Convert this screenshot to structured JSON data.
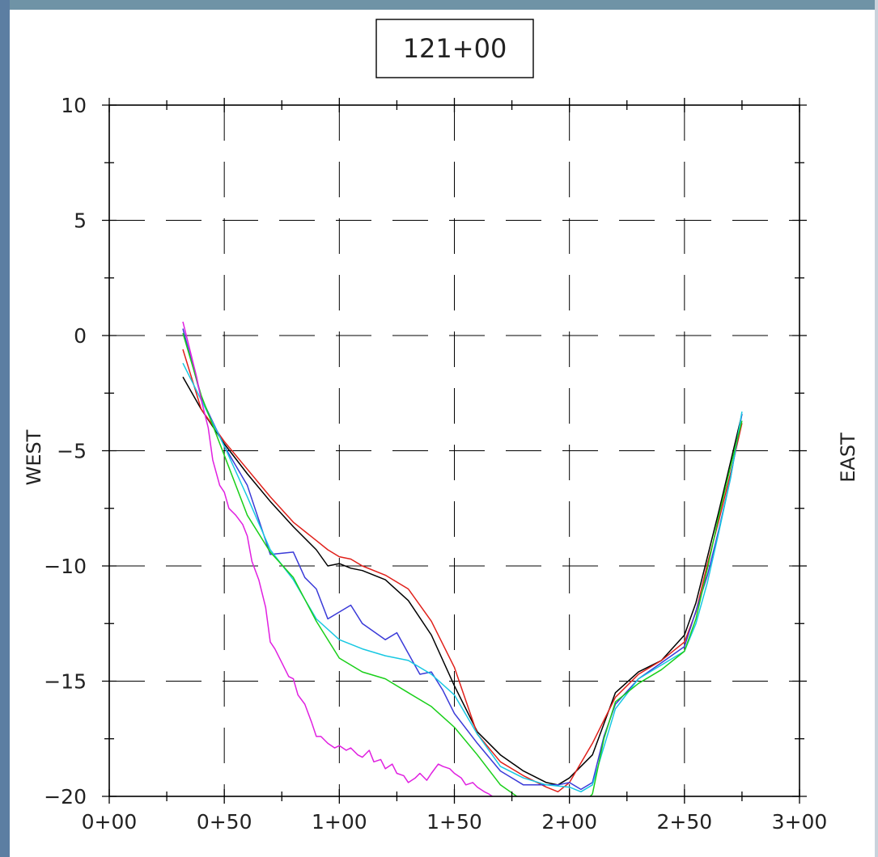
{
  "chart_data": {
    "type": "line",
    "title": "121+00",
    "ylabel": "WEST",
    "y2label": "EAST",
    "xlabel": "",
    "xlim": [
      0,
      300
    ],
    "ylim": [
      -20,
      10
    ],
    "x_ticks": [
      0,
      50,
      100,
      150,
      200,
      250,
      300
    ],
    "x_tick_labels": [
      "0+00",
      "0+50",
      "1+00",
      "1+50",
      "2+00",
      "2+50",
      "3+00"
    ],
    "y_ticks": [
      10,
      5,
      0,
      -5,
      -10,
      -15,
      -20
    ],
    "y_tick_labels": [
      "10",
      "5",
      "0",
      "−5",
      "−10",
      "−15",
      "−20"
    ],
    "grid": true,
    "grid_style": "dashed",
    "series": [
      {
        "color": "#000000",
        "x": [
          32,
          40,
          50,
          60,
          70,
          80,
          90,
          95,
          100,
          105,
          110,
          120,
          130,
          140,
          150,
          160,
          170,
          180,
          190,
          195,
          200,
          210,
          220,
          230,
          240,
          250,
          255,
          260,
          265,
          270,
          275
        ],
        "y": [
          -1.8,
          -3.2,
          -4.7,
          -6.0,
          -7.2,
          -8.3,
          -9.3,
          -10.0,
          -9.9,
          -10.1,
          -10.2,
          -10.6,
          -11.5,
          -13.0,
          -15.2,
          -17.2,
          -18.2,
          -18.9,
          -19.4,
          -19.5,
          -19.2,
          -18.2,
          -15.5,
          -14.6,
          -14.1,
          -13.0,
          -11.6,
          -9.6,
          -7.6,
          -5.5,
          -3.4
        ]
      },
      {
        "color": "#e0201a",
        "x": [
          32,
          40,
          50,
          60,
          70,
          80,
          90,
          95,
          100,
          105,
          110,
          120,
          130,
          140,
          150,
          160,
          170,
          180,
          190,
          195,
          200,
          210,
          220,
          230,
          240,
          250,
          255,
          260,
          265,
          270,
          275
        ],
        "y": [
          -0.6,
          -3.2,
          -4.6,
          -5.8,
          -7.0,
          -8.1,
          -8.9,
          -9.3,
          -9.6,
          -9.7,
          -10.0,
          -10.4,
          -11.0,
          -12.4,
          -14.4,
          -17.3,
          -18.5,
          -19.1,
          -19.6,
          -19.8,
          -19.4,
          -17.7,
          -15.7,
          -14.7,
          -14.1,
          -13.3,
          -12.0,
          -9.9,
          -8.0,
          -6.0,
          -3.8
        ]
      },
      {
        "color": "#3a3ad8",
        "x": [
          32,
          40,
          50,
          60,
          65,
          70,
          80,
          85,
          90,
          95,
          100,
          105,
          110,
          120,
          125,
          130,
          135,
          140,
          145,
          150,
          160,
          170,
          180,
          190,
          195,
          200,
          205,
          210,
          215,
          220,
          230,
          240,
          250,
          260,
          265,
          270,
          275
        ],
        "y": [
          0.3,
          -2.7,
          -4.8,
          -6.5,
          -8.0,
          -9.5,
          -9.4,
          -10.5,
          -11.0,
          -12.3,
          -12.0,
          -11.7,
          -12.5,
          -13.2,
          -12.9,
          -13.8,
          -14.7,
          -14.6,
          -15.4,
          -16.4,
          -17.7,
          -18.9,
          -19.5,
          -19.5,
          -19.5,
          -19.4,
          -19.7,
          -19.4,
          -17.4,
          -16.0,
          -14.9,
          -14.2,
          -13.5,
          -10.4,
          -8.4,
          -6.2,
          -3.4
        ]
      },
      {
        "color": "#17c8e2",
        "x": [
          32,
          40,
          50,
          60,
          70,
          80,
          90,
          100,
          110,
          120,
          130,
          140,
          150,
          160,
          170,
          180,
          190,
          200,
          205,
          210,
          220,
          230,
          240,
          250,
          255,
          260,
          265,
          270,
          275
        ],
        "y": [
          -1.2,
          -2.8,
          -4.8,
          -7.0,
          -9.3,
          -10.6,
          -12.3,
          -13.2,
          -13.6,
          -13.9,
          -14.1,
          -14.7,
          -15.6,
          -17.3,
          -18.7,
          -19.2,
          -19.5,
          -19.6,
          -19.8,
          -19.5,
          -16.2,
          -14.9,
          -14.3,
          -13.7,
          -12.5,
          -10.7,
          -8.5,
          -6.2,
          -3.3
        ]
      },
      {
        "color": "#19cf19",
        "x": [
          32,
          40,
          50,
          60,
          70,
          80,
          90,
          100,
          110,
          120,
          130,
          140,
          150,
          160,
          170,
          180,
          190,
          200,
          205,
          210,
          215,
          220,
          230,
          240,
          250,
          255,
          260,
          265,
          270,
          275
        ],
        "y": [
          0.1,
          -2.6,
          -5.2,
          -7.8,
          -9.4,
          -10.5,
          -12.4,
          -14.0,
          -14.6,
          -14.9,
          -15.5,
          -16.1,
          -17.0,
          -18.2,
          -19.5,
          -20.2,
          -20.3,
          -20.6,
          -20.4,
          -19.9,
          -17.5,
          -15.9,
          -15.1,
          -14.5,
          -13.7,
          -12.3,
          -10.1,
          -7.8,
          -5.7,
          -3.7
        ]
      },
      {
        "color": "#e020e0",
        "x": [
          32,
          35,
          38,
          40,
          43,
          45,
          48,
          50,
          52,
          55,
          58,
          60,
          62,
          65,
          68,
          70,
          72,
          75,
          78,
          80,
          82,
          85,
          88,
          90,
          92,
          95,
          98,
          100,
          103,
          105,
          108,
          110,
          113,
          115,
          118,
          120,
          123,
          125,
          128,
          130,
          133,
          135,
          138,
          140,
          143,
          145,
          148,
          150,
          153,
          155,
          158,
          160,
          163,
          165,
          168,
          170,
          173,
          175,
          178,
          180,
          183,
          185,
          188,
          190,
          193
        ],
        "y": [
          0.6,
          -0.6,
          -1.8,
          -2.8,
          -4.0,
          -5.4,
          -6.5,
          -6.8,
          -7.5,
          -7.8,
          -8.2,
          -8.7,
          -9.8,
          -10.6,
          -11.8,
          -13.3,
          -13.6,
          -14.2,
          -14.8,
          -14.9,
          -15.6,
          -16.0,
          -16.8,
          -17.4,
          -17.4,
          -17.7,
          -17.9,
          -17.8,
          -18.0,
          -17.9,
          -18.2,
          -18.3,
          -18.0,
          -18.5,
          -18.4,
          -18.8,
          -18.6,
          -19.0,
          -19.1,
          -19.4,
          -19.2,
          -19.0,
          -19.3,
          -19.0,
          -18.6,
          -18.7,
          -18.8,
          -19.0,
          -19.2,
          -19.5,
          -19.4,
          -19.6,
          -19.8,
          -19.9,
          -20.1,
          -20.0,
          -20.2,
          -20.0,
          -20.2,
          -20.1,
          -20.3,
          -20.2,
          -20.5,
          -20.6,
          -20.8
        ]
      }
    ]
  }
}
